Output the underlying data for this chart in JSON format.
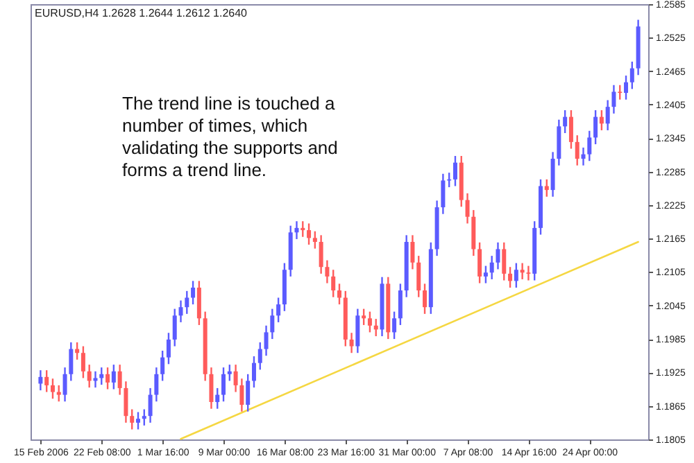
{
  "chart_data": {
    "type": "candlestick",
    "title": "EURUSD,H4  1.2628 1.2644 1.2612 1.2640",
    "annotations": [
      "The trend line is touched a number of times, which validating the supports and forms a trend line."
    ],
    "categories": [
      "15 Feb 2006",
      null,
      null,
      null,
      null,
      null,
      null,
      null,
      null,
      null,
      "22 Feb 08:00",
      null,
      null,
      null,
      null,
      null,
      null,
      null,
      null,
      null,
      "1 Mar 16:00",
      null,
      null,
      null,
      null,
      null,
      null,
      null,
      null,
      null,
      "9 Mar 00:00",
      null,
      null,
      null,
      null,
      null,
      null,
      null,
      null,
      null,
      "16 Mar 08:00",
      null,
      null,
      null,
      null,
      null,
      null,
      null,
      null,
      null,
      "23 Mar 16:00",
      null,
      null,
      null,
      null,
      null,
      null,
      null,
      null,
      null,
      "31 Mar 00:00",
      null,
      null,
      null,
      null,
      null,
      null,
      null,
      null,
      null,
      "7 Apr 08:00",
      null,
      null,
      null,
      null,
      null,
      null,
      null,
      null,
      null,
      "14 Apr 16:00",
      null,
      null,
      null,
      null,
      null,
      null,
      null,
      null,
      null,
      "24 Apr 00:00",
      null,
      null,
      null,
      null,
      null,
      null,
      null,
      null
    ],
    "ohlc": [
      [
        1.1905,
        1.1929,
        1.1893,
        1.1917
      ],
      [
        1.1917,
        1.1929,
        1.189,
        1.1902
      ],
      [
        1.1902,
        1.1914,
        1.1878,
        1.189
      ],
      [
        1.189,
        1.1902,
        1.1873,
        1.1885
      ],
      [
        1.1885,
        1.1934,
        1.1873,
        1.1922
      ],
      [
        1.1922,
        1.1979,
        1.191,
        1.1967
      ],
      [
        1.1967,
        1.1979,
        1.1948,
        1.196
      ],
      [
        1.196,
        1.1972,
        1.1915,
        1.1927
      ],
      [
        1.1927,
        1.1939,
        1.1898,
        1.191
      ],
      [
        1.191,
        1.1927,
        1.1898,
        1.1915
      ],
      [
        1.1915,
        1.1934,
        1.1903,
        1.1922
      ],
      [
        1.1922,
        1.1934,
        1.1895,
        1.1907
      ],
      [
        1.1907,
        1.1939,
        1.1895,
        1.1927
      ],
      [
        1.1927,
        1.1939,
        1.1885,
        1.1897
      ],
      [
        1.1897,
        1.1909,
        1.1835,
        1.1847
      ],
      [
        1.1847,
        1.1859,
        1.1823,
        1.1835
      ],
      [
        1.1835,
        1.1854,
        1.1823,
        1.1842
      ],
      [
        1.1842,
        1.1859,
        1.183,
        1.1847
      ],
      [
        1.1847,
        1.1897,
        1.1835,
        1.1885
      ],
      [
        1.1885,
        1.1934,
        1.1873,
        1.1922
      ],
      [
        1.1922,
        1.1964,
        1.191,
        1.1952
      ],
      [
        1.1952,
        1.1996,
        1.194,
        1.1984
      ],
      [
        1.1984,
        1.2039,
        1.1972,
        1.2027
      ],
      [
        1.2027,
        1.2054,
        1.2015,
        1.2042
      ],
      [
        1.2042,
        1.2071,
        1.203,
        1.2059
      ],
      [
        1.2059,
        1.2089,
        1.2047,
        1.2077
      ],
      [
        1.2077,
        1.2089,
        1.201,
        1.2022
      ],
      [
        1.2022,
        1.2034,
        1.191,
        1.1922
      ],
      [
        1.1922,
        1.1934,
        1.186,
        1.1872
      ],
      [
        1.1872,
        1.1897,
        1.186,
        1.1885
      ],
      [
        1.1885,
        1.1934,
        1.1873,
        1.1922
      ],
      [
        1.1922,
        1.1939,
        1.191,
        1.1927
      ],
      [
        1.1927,
        1.1939,
        1.189,
        1.1902
      ],
      [
        1.1902,
        1.1914,
        1.1855,
        1.1867
      ],
      [
        1.1867,
        1.1922,
        1.1855,
        1.191
      ],
      [
        1.191,
        1.1954,
        1.1898,
        1.1942
      ],
      [
        1.1942,
        1.1979,
        1.193,
        1.1967
      ],
      [
        1.1967,
        1.2009,
        1.1955,
        1.1997
      ],
      [
        1.1997,
        1.2039,
        1.1985,
        1.2027
      ],
      [
        1.2027,
        1.2059,
        1.2015,
        1.2047
      ],
      [
        1.2047,
        1.2121,
        1.2035,
        1.2109
      ],
      [
        1.2109,
        1.2188,
        1.2097,
        1.2176
      ],
      [
        1.2176,
        1.2196,
        1.2164,
        1.2184
      ],
      [
        1.2184,
        1.2196,
        1.2168,
        1.218
      ],
      [
        1.218,
        1.2192,
        1.2154,
        1.2166
      ],
      [
        1.2166,
        1.2178,
        1.2147,
        1.2159
      ],
      [
        1.2159,
        1.2171,
        1.2102,
        1.2114
      ],
      [
        1.2114,
        1.2126,
        1.2085,
        1.2097
      ],
      [
        1.2097,
        1.2109,
        1.206,
        1.2072
      ],
      [
        1.2072,
        1.2084,
        1.2047,
        1.2059
      ],
      [
        1.2059,
        1.2071,
        1.1972,
        1.1984
      ],
      [
        1.1984,
        1.1996,
        1.196,
        1.1972
      ],
      [
        1.1972,
        1.2039,
        1.196,
        1.2027
      ],
      [
        1.2027,
        1.2039,
        1.201,
        1.2022
      ],
      [
        1.2022,
        1.2034,
        1.1997,
        1.2009
      ],
      [
        1.2009,
        1.2021,
        1.199,
        1.2002
      ],
      [
        1.2002,
        1.2096,
        1.199,
        1.2084
      ],
      [
        1.2084,
        1.2096,
        1.1985,
        1.1997
      ],
      [
        1.1997,
        1.2034,
        1.1985,
        1.2022
      ],
      [
        1.2022,
        1.2084,
        1.201,
        1.2072
      ],
      [
        1.2072,
        1.2171,
        1.206,
        1.2159
      ],
      [
        1.2159,
        1.2171,
        1.211,
        1.2122
      ],
      [
        1.2122,
        1.2134,
        1.206,
        1.2072
      ],
      [
        1.2072,
        1.2084,
        1.203,
        1.2042
      ],
      [
        1.2042,
        1.2158,
        1.203,
        1.2146
      ],
      [
        1.2146,
        1.2233,
        1.2134,
        1.2221
      ],
      [
        1.2221,
        1.2281,
        1.2209,
        1.2269
      ],
      [
        1.2269,
        1.2283,
        1.2257,
        1.2271
      ],
      [
        1.2271,
        1.2313,
        1.2259,
        1.2301
      ],
      [
        1.2301,
        1.2313,
        1.2222,
        1.2234
      ],
      [
        1.2234,
        1.2246,
        1.2192,
        1.2204
      ],
      [
        1.2204,
        1.2216,
        1.2134,
        1.2146
      ],
      [
        1.2146,
        1.2158,
        1.2085,
        1.2097
      ],
      [
        1.2097,
        1.2116,
        1.2085,
        1.2104
      ],
      [
        1.2104,
        1.2134,
        1.2092,
        1.2122
      ],
      [
        1.2122,
        1.2158,
        1.211,
        1.2146
      ],
      [
        1.2146,
        1.2158,
        1.209,
        1.2102
      ],
      [
        1.2102,
        1.2114,
        1.2077,
        1.2089
      ],
      [
        1.2089,
        1.2121,
        1.2077,
        1.2109
      ],
      [
        1.2109,
        1.2121,
        1.2092,
        1.2104
      ],
      [
        1.2104,
        1.2116,
        1.209,
        1.2102
      ],
      [
        1.2102,
        1.2196,
        1.209,
        1.2184
      ],
      [
        1.2184,
        1.2271,
        1.2172,
        1.2259
      ],
      [
        1.2259,
        1.2271,
        1.224,
        1.2252
      ],
      [
        1.2252,
        1.232,
        1.224,
        1.2308
      ],
      [
        1.2308,
        1.2378,
        1.2296,
        1.2366
      ],
      [
        1.2366,
        1.2395,
        1.2354,
        1.2383
      ],
      [
        1.2383,
        1.2395,
        1.2326,
        1.2338
      ],
      [
        1.2338,
        1.235,
        1.2296,
        1.2308
      ],
      [
        1.2308,
        1.2328,
        1.2296,
        1.2316
      ],
      [
        1.2316,
        1.2358,
        1.2304,
        1.2346
      ],
      [
        1.2346,
        1.2395,
        1.2334,
        1.2383
      ],
      [
        1.2383,
        1.2395,
        1.2359,
        1.2371
      ],
      [
        1.2371,
        1.2413,
        1.2359,
        1.2401
      ],
      [
        1.2401,
        1.244,
        1.2389,
        1.2428
      ],
      [
        1.2428,
        1.244,
        1.2414,
        1.2426
      ],
      [
        1.2426,
        1.2457,
        1.2414,
        1.2445
      ],
      [
        1.2445,
        1.2482,
        1.2433,
        1.247
      ],
      [
        1.247,
        1.2557,
        1.2458,
        1.2545
      ]
    ],
    "colors": [
      "#5b5bff",
      "#ff5b5b",
      "#ff5b5b",
      "#ff5b5b",
      "#5b5bff",
      "#5b5bff",
      "#ff5b5b",
      "#ff5b5b",
      "#ff5b5b",
      "#5b5bff",
      "#5b5bff",
      "#ff5b5b",
      "#5b5bff",
      "#ff5b5b",
      "#ff5b5b",
      "#ff5b5b",
      "#5b5bff",
      "#5b5bff",
      "#5b5bff",
      "#5b5bff",
      "#5b5bff",
      "#5b5bff",
      "#5b5bff",
      "#5b5bff",
      "#5b5bff",
      "#5b5bff",
      "#ff5b5b",
      "#ff5b5b",
      "#ff5b5b",
      "#5b5bff",
      "#5b5bff",
      "#5b5bff",
      "#ff5b5b",
      "#ff5b5b",
      "#5b5bff",
      "#5b5bff",
      "#5b5bff",
      "#5b5bff",
      "#5b5bff",
      "#5b5bff",
      "#5b5bff",
      "#5b5bff",
      "#5b5bff",
      "#ff5b5b",
      "#ff5b5b",
      "#ff5b5b",
      "#ff5b5b",
      "#ff5b5b",
      "#ff5b5b",
      "#ff5b5b",
      "#ff5b5b",
      "#ff5b5b",
      "#5b5bff",
      "#ff5b5b",
      "#ff5b5b",
      "#ff5b5b",
      "#5b5bff",
      "#ff5b5b",
      "#5b5bff",
      "#5b5bff",
      "#5b5bff",
      "#ff5b5b",
      "#ff5b5b",
      "#ff5b5b",
      "#5b5bff",
      "#5b5bff",
      "#5b5bff",
      "#5b5bff",
      "#5b5bff",
      "#ff5b5b",
      "#ff5b5b",
      "#ff5b5b",
      "#ff5b5b",
      "#5b5bff",
      "#5b5bff",
      "#5b5bff",
      "#ff5b5b",
      "#ff5b5b",
      "#5b5bff",
      "#ff5b5b",
      "#ff5b5b",
      "#5b5bff",
      "#5b5bff",
      "#ff5b5b",
      "#5b5bff",
      "#5b5bff",
      "#5b5bff",
      "#ff5b5b",
      "#ff5b5b",
      "#5b5bff",
      "#5b5bff",
      "#5b5bff",
      "#ff5b5b",
      "#5b5bff",
      "#5b5bff",
      "#ff5b5b",
      "#5b5bff",
      "#5b5bff",
      "#5b5bff"
    ],
    "series": [
      {
        "type": "line",
        "color": "#f5d742",
        "values": [
          null,
          null,
          null,
          null,
          null,
          null,
          null,
          null,
          null,
          null,
          null,
          null,
          null,
          null,
          null,
          null,
          null,
          null,
          null,
          null,
          null,
          null,
          null,
          1.1806,
          null,
          null,
          null,
          null,
          null,
          null,
          null,
          null,
          null,
          null,
          null,
          null,
          null,
          null,
          null,
          null,
          null,
          null,
          null,
          null,
          null,
          null,
          null,
          null,
          null,
          null,
          null,
          null,
          null,
          null,
          null,
          null,
          null,
          null,
          null,
          null,
          null,
          null,
          null,
          null,
          null,
          null,
          null,
          null,
          null,
          null,
          null,
          null,
          null,
          null,
          null,
          null,
          null,
          null,
          null,
          null,
          null,
          null,
          null,
          null,
          null,
          null,
          null,
          null,
          null,
          null,
          null,
          null,
          null,
          null,
          null,
          null,
          null,
          null,
          1.2159
        ]
      }
    ],
    "ylim": [
      1.1805,
      1.2585
    ],
    "yticks": [
      1.1805,
      1.1865,
      1.1925,
      1.1985,
      1.2045,
      1.2105,
      1.2165,
      1.2225,
      1.2285,
      1.2345,
      1.2405,
      1.2465,
      1.2525,
      1.2585
    ],
    "tick_labels": true
  }
}
